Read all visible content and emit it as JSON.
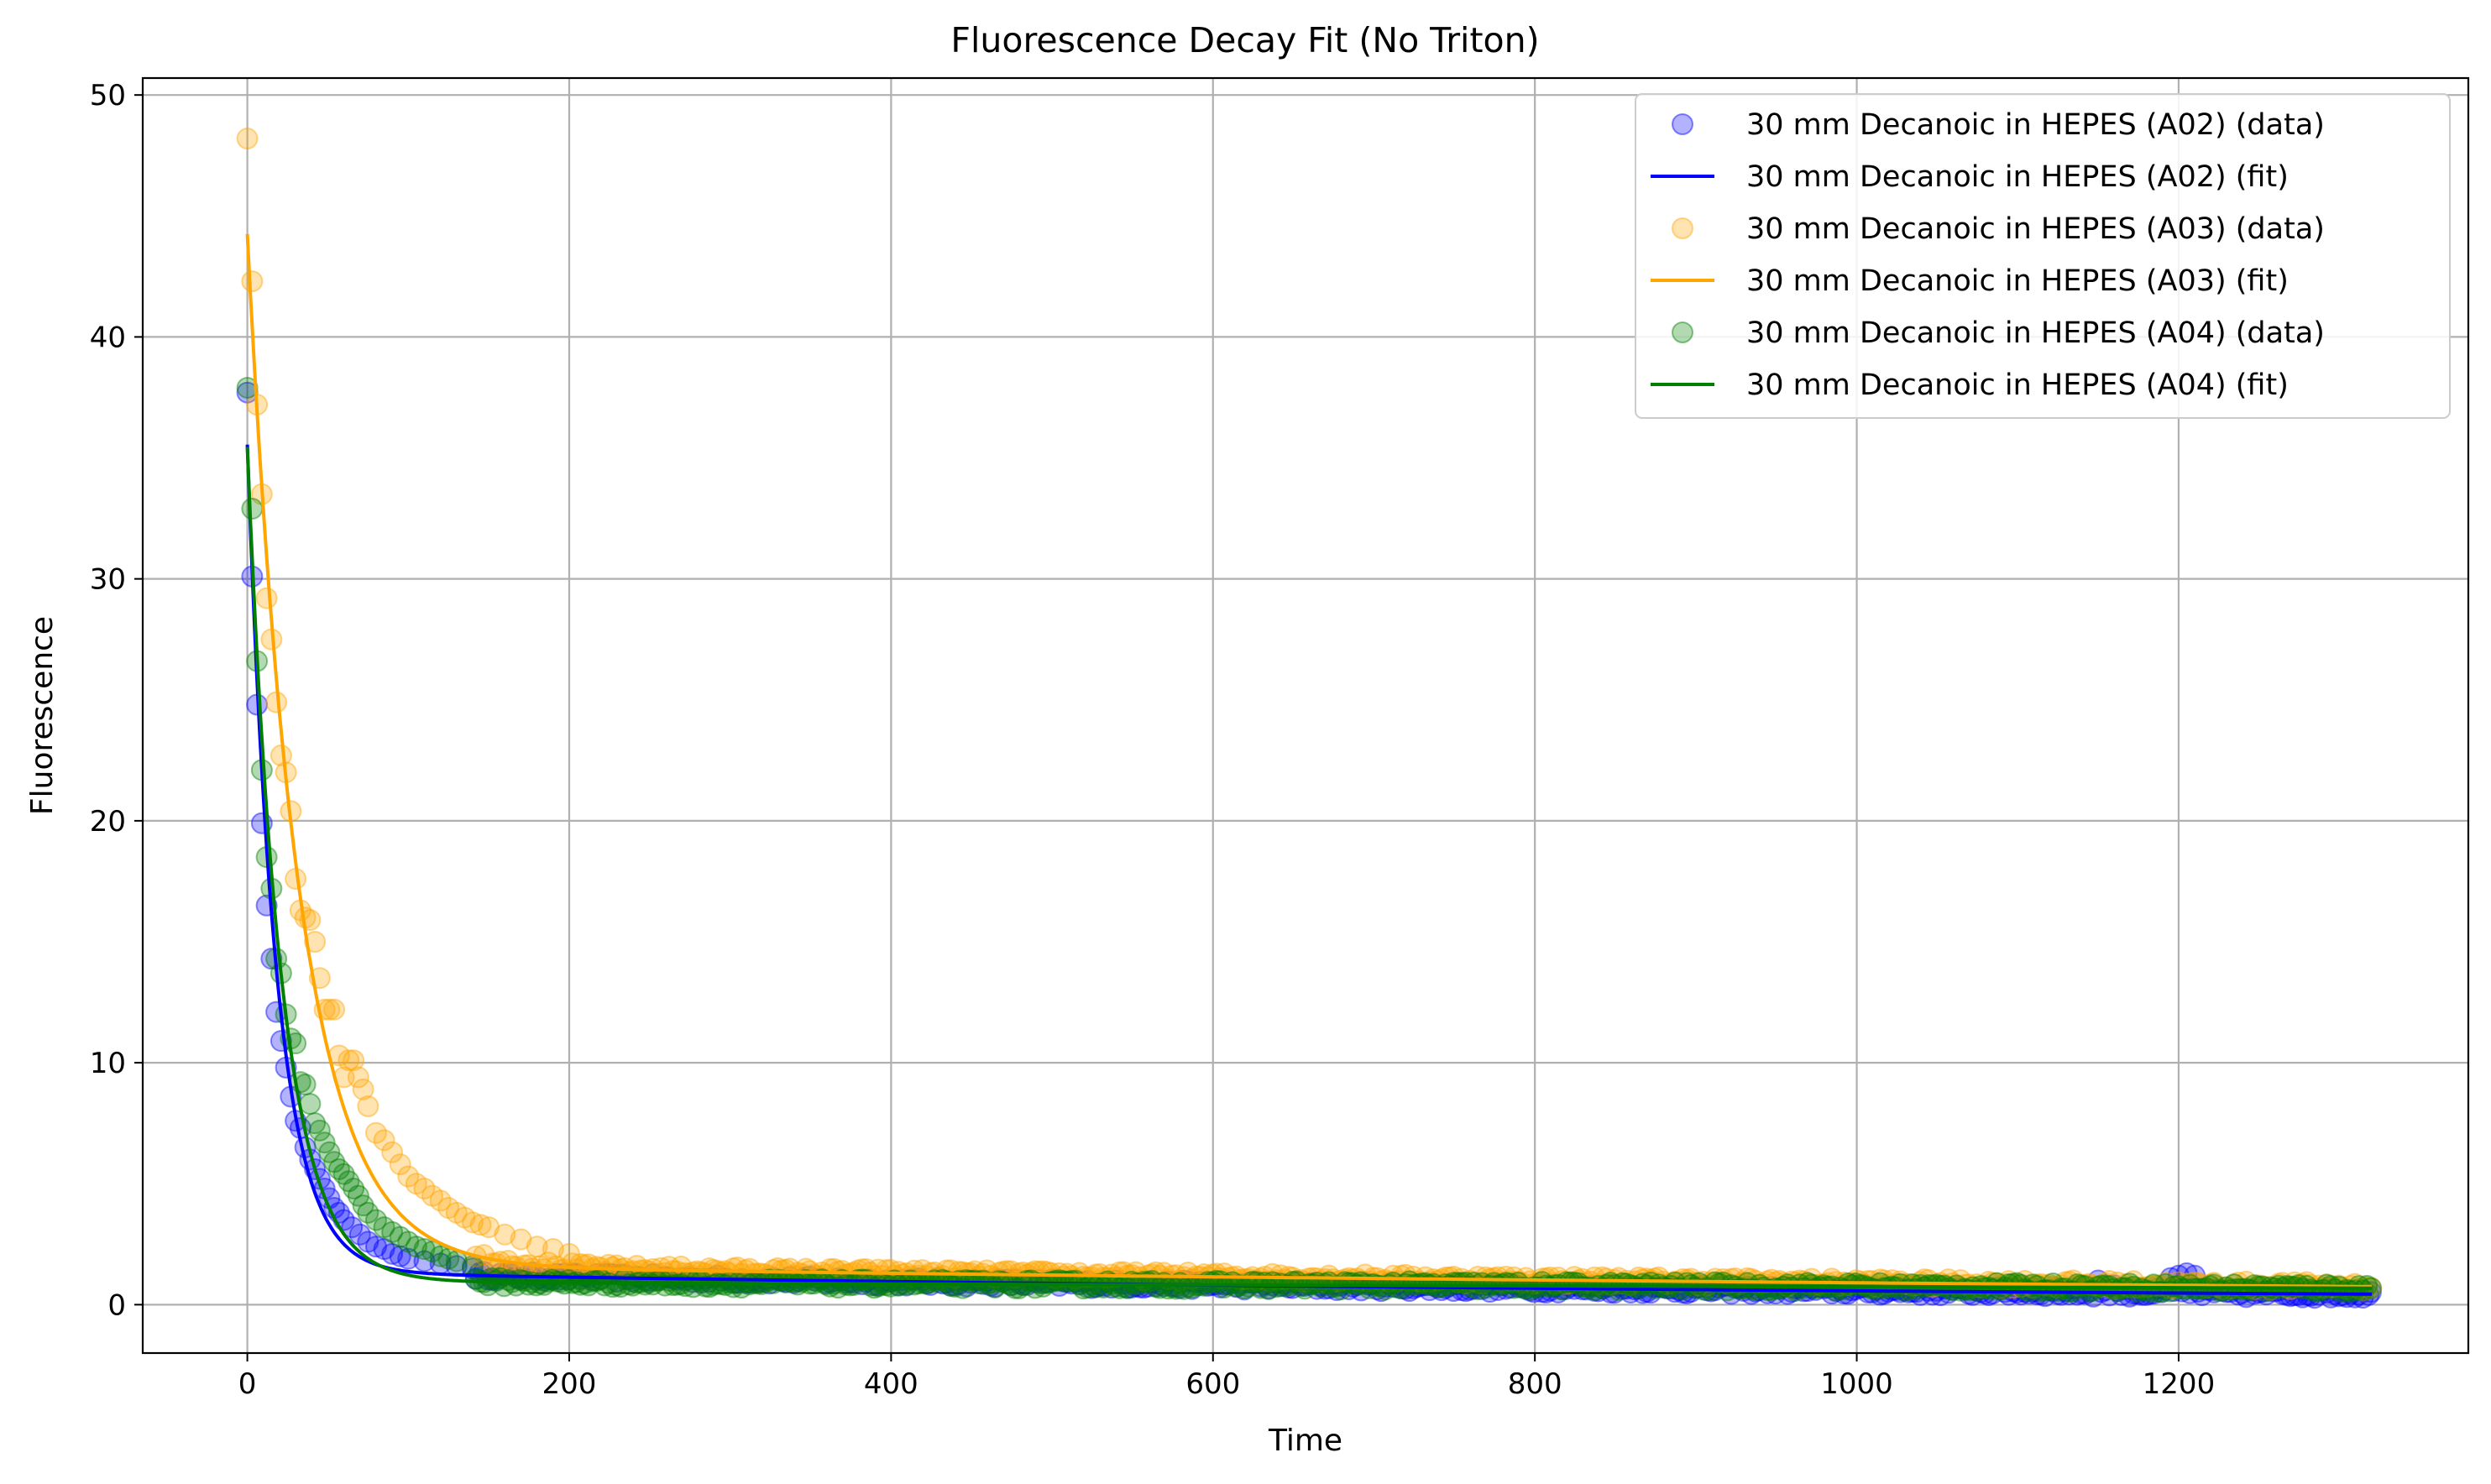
{
  "chart_data": {
    "type": "scatter",
    "title": "Fluorescence Decay Fit (No Triton)",
    "xlabel": "Time",
    "ylabel": "Fluorescence",
    "xlim": [
      -65,
      1380
    ],
    "ylim": [
      -2,
      50.7
    ],
    "xticks": [
      0,
      200,
      400,
      600,
      800,
      1000,
      1200
    ],
    "yticks": [
      0,
      10,
      20,
      30,
      40,
      50
    ],
    "grid": true,
    "legend_position": "top-right",
    "x_max": 1320,
    "series": [
      {
        "name": "30 mm Decanoic in HEPES (A02) (data)",
        "fit_name": "30 mm Decanoic in HEPES (A02) (fit)",
        "color": "#0000ff",
        "fit_params": {
          "a": 34.2,
          "tau": 18,
          "b": 1.35,
          "k": 0.00086
        },
        "points": [
          [
            0,
            37.7
          ],
          [
            3,
            30.1
          ],
          [
            6,
            24.8
          ],
          [
            9,
            19.9
          ],
          [
            12,
            16.5
          ],
          [
            15,
            14.3
          ],
          [
            18,
            12.1
          ],
          [
            21,
            10.9
          ],
          [
            24,
            9.8
          ],
          [
            27,
            8.6
          ],
          [
            30,
            7.6
          ],
          [
            33,
            7.3
          ],
          [
            36,
            6.5
          ],
          [
            39,
            6.0
          ],
          [
            42,
            5.6
          ],
          [
            45,
            5.2
          ],
          [
            48,
            4.8
          ],
          [
            51,
            4.4
          ],
          [
            54,
            4.0
          ],
          [
            57,
            3.8
          ],
          [
            60,
            3.5
          ],
          [
            65,
            3.2
          ],
          [
            70,
            2.9
          ],
          [
            75,
            2.6
          ],
          [
            80,
            2.4
          ],
          [
            85,
            2.3
          ],
          [
            90,
            2.1
          ],
          [
            95,
            2.0
          ],
          [
            100,
            1.9
          ],
          [
            110,
            1.8
          ],
          [
            120,
            1.7
          ],
          [
            130,
            1.6
          ],
          [
            140,
            1.5
          ],
          [
            1150,
            1.0
          ],
          [
            1160,
            0.8
          ],
          [
            1195,
            1.1
          ],
          [
            1200,
            1.2
          ],
          [
            1205,
            1.3
          ],
          [
            1210,
            1.2
          ],
          [
            1220,
            0.6
          ],
          [
            1250,
            0.5
          ],
          [
            1280,
            0.4
          ],
          [
            1318,
            0.4
          ]
        ]
      },
      {
        "name": "30 mm Decanoic in HEPES (A03) (data)",
        "fit_name": "30 mm Decanoic in HEPES (A03) (fit)",
        "color": "#ffa500",
        "fit_params": {
          "a": 42.6,
          "tau": 32,
          "b": 1.65,
          "k": 0.0006
        },
        "points": [
          [
            0,
            48.2
          ],
          [
            3,
            42.3
          ],
          [
            6,
            37.2
          ],
          [
            9,
            33.5
          ],
          [
            12,
            29.2
          ],
          [
            15,
            27.5
          ],
          [
            18,
            24.9
          ],
          [
            21,
            22.7
          ],
          [
            24,
            22.0
          ],
          [
            27,
            20.4
          ],
          [
            30,
            17.6
          ],
          [
            33,
            16.3
          ],
          [
            36,
            16.0
          ],
          [
            39,
            15.9
          ],
          [
            42,
            15.0
          ],
          [
            45,
            13.5
          ],
          [
            48,
            12.2
          ],
          [
            51,
            12.2
          ],
          [
            54,
            12.2
          ],
          [
            57,
            10.3
          ],
          [
            60,
            9.4
          ],
          [
            63,
            10.1
          ],
          [
            66,
            10.1
          ],
          [
            69,
            9.4
          ],
          [
            72,
            8.9
          ],
          [
            75,
            8.2
          ],
          [
            80,
            7.1
          ],
          [
            85,
            6.8
          ],
          [
            90,
            6.3
          ],
          [
            95,
            5.8
          ],
          [
            100,
            5.3
          ],
          [
            105,
            5.0
          ],
          [
            110,
            4.8
          ],
          [
            115,
            4.5
          ],
          [
            120,
            4.3
          ],
          [
            125,
            4.0
          ],
          [
            130,
            3.8
          ],
          [
            135,
            3.6
          ],
          [
            140,
            3.4
          ],
          [
            145,
            3.3
          ],
          [
            150,
            3.2
          ],
          [
            160,
            2.9
          ],
          [
            170,
            2.7
          ],
          [
            180,
            2.4
          ],
          [
            190,
            2.3
          ],
          [
            200,
            2.1
          ]
        ]
      },
      {
        "name": "30 mm Decanoic in HEPES (A04) (data)",
        "fit_name": "30 mm Decanoic in HEPES (A04) (fit)",
        "color": "#008000",
        "fit_params": {
          "a": 34.5,
          "tau": 21,
          "b": 0.95,
          "k": 0.00025
        },
        "points": [
          [
            0,
            37.9
          ],
          [
            3,
            32.9
          ],
          [
            6,
            26.6
          ],
          [
            9,
            22.1
          ],
          [
            12,
            18.5
          ],
          [
            15,
            17.2
          ],
          [
            18,
            14.3
          ],
          [
            21,
            13.7
          ],
          [
            24,
            12.0
          ],
          [
            27,
            11.0
          ],
          [
            30,
            10.8
          ],
          [
            33,
            9.2
          ],
          [
            36,
            9.1
          ],
          [
            39,
            8.3
          ],
          [
            42,
            7.5
          ],
          [
            45,
            7.2
          ],
          [
            48,
            6.7
          ],
          [
            51,
            6.3
          ],
          [
            54,
            5.9
          ],
          [
            57,
            5.6
          ],
          [
            60,
            5.4
          ],
          [
            63,
            5.1
          ],
          [
            66,
            4.8
          ],
          [
            69,
            4.5
          ],
          [
            72,
            4.1
          ],
          [
            75,
            3.8
          ],
          [
            80,
            3.5
          ],
          [
            85,
            3.2
          ],
          [
            90,
            3.0
          ],
          [
            95,
            2.8
          ],
          [
            100,
            2.6
          ],
          [
            105,
            2.4
          ],
          [
            110,
            2.3
          ],
          [
            115,
            2.2
          ],
          [
            120,
            2.0
          ],
          [
            125,
            1.9
          ],
          [
            130,
            1.8
          ],
          [
            140,
            1.6
          ]
        ]
      }
    ]
  }
}
